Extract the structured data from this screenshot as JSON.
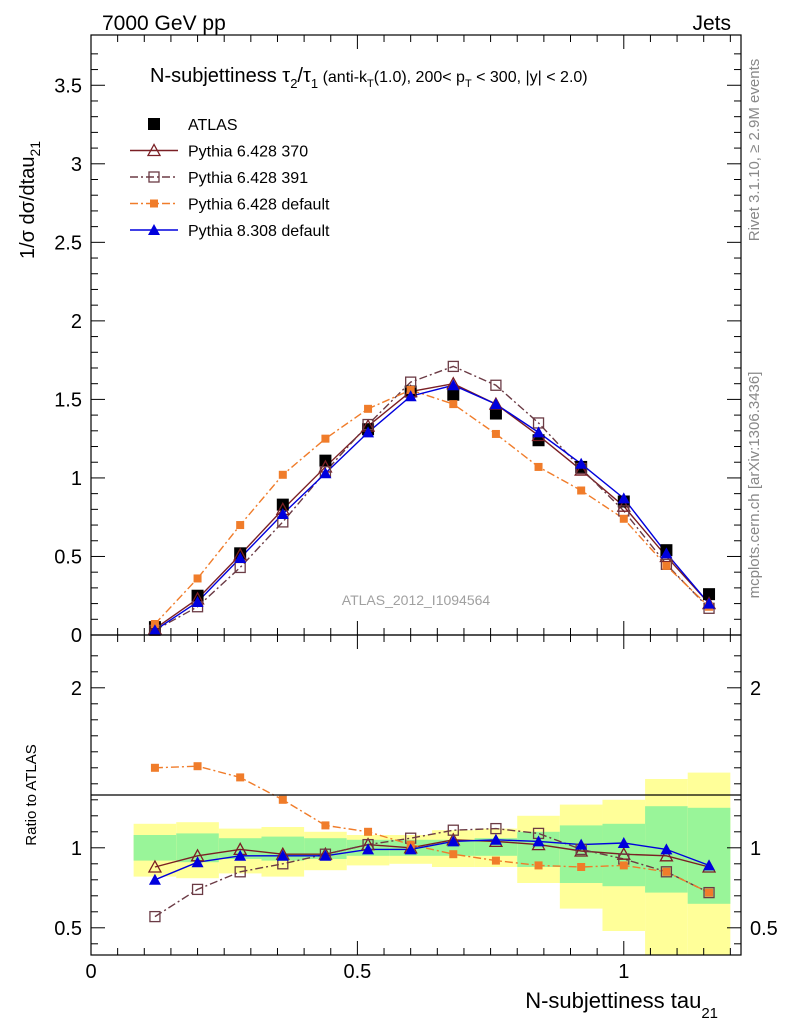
{
  "header": {
    "left": "7000 GeV pp",
    "right": "Jets"
  },
  "side_text": {
    "rivet": "Rivet 3.1.10, ≥ 2.9M events",
    "mcplots": "mcplots.cern.ch [arXiv:1306.3436]"
  },
  "watermark": "ATLAS_2012_I1094564",
  "colors": {
    "ATLAS": "#000000",
    "Pythia 6.428 370": "#7a1f24",
    "Pythia 6.428 391": "#6b3b45",
    "Pythia 6.428 default": "#f07c2a",
    "Pythia 8.308 default": "#0000dd",
    "band_inner": "#99f599",
    "band_outer": "#ffff99"
  },
  "chart_data": [
    {
      "type": "line",
      "title": "N-subjettiness τ₂/τ₁ (anti-kT(1.0), 200< pT < 300, |y| < 2.0)",
      "title_parts": {
        "main": "N-subjettiness ",
        "tau": "τ",
        "sub2": "2",
        "slash": "/",
        "sub1": "1",
        "cut_a": " (anti-k",
        "cut_T": "T",
        "cut_b": "(1.0), 200< p",
        "cut_T2": "T",
        "cut_c": " < 300, |y| < 2.0)"
      },
      "ylabel": "1/σ dσ/dtau",
      "ylabel_sub": "21",
      "xlim": [
        0,
        1.22
      ],
      "ylim": [
        0,
        3.82
      ],
      "yticks": [
        0,
        0.5,
        1,
        1.5,
        2,
        2.5,
        3,
        3.5
      ],
      "ytick_labels": [
        "0",
        "0.5",
        "1",
        "1.5",
        "2",
        "2.5",
        "3",
        "3.5"
      ],
      "legend_position": "top-left",
      "x": [
        0.12,
        0.2,
        0.28,
        0.36,
        0.44,
        0.52,
        0.6,
        0.68,
        0.76,
        0.84,
        0.92,
        1.0,
        1.08,
        1.16
      ],
      "series": [
        {
          "name": "ATLAS",
          "values": [
            0.05,
            0.25,
            0.52,
            0.83,
            1.11,
            1.31,
            1.55,
            1.53,
            1.41,
            1.24,
            1.07,
            0.85,
            0.54,
            0.26
          ]
        },
        {
          "name": "Pythia 6.428 370",
          "values": [
            0.04,
            0.23,
            0.51,
            0.8,
            1.07,
            1.33,
            1.55,
            1.6,
            1.47,
            1.27,
            1.05,
            0.82,
            0.5,
            0.2
          ]
        },
        {
          "name": "Pythia 6.428 391",
          "values": [
            0.03,
            0.18,
            0.43,
            0.72,
            1.04,
            1.34,
            1.61,
            1.71,
            1.59,
            1.35,
            1.06,
            0.79,
            0.45,
            0.17
          ]
        },
        {
          "name": "Pythia 6.428 default",
          "values": [
            0.07,
            0.36,
            0.7,
            1.02,
            1.25,
            1.44,
            1.56,
            1.47,
            1.28,
            1.07,
            0.92,
            0.74,
            0.44,
            0.18
          ]
        },
        {
          "name": "Pythia 8.308 default",
          "values": [
            0.03,
            0.21,
            0.49,
            0.77,
            1.03,
            1.29,
            1.52,
            1.59,
            1.47,
            1.29,
            1.09,
            0.87,
            0.52,
            0.2
          ]
        }
      ]
    },
    {
      "type": "line",
      "ylabel": "Ratio to ATLAS",
      "xlabel": "N-subjettiness tau",
      "xlabel_sub": "21",
      "xlim": [
        0,
        1.22
      ],
      "ylim": [
        0.33,
        2.33
      ],
      "xticks": [
        0,
        0.5,
        1
      ],
      "xtick_labels": [
        "0",
        "0.5",
        "1"
      ],
      "yticks": [
        0.5,
        1,
        2
      ],
      "ytick_labels": [
        "0.5",
        "1",
        "2"
      ],
      "reference_line": 1,
      "x": [
        0.12,
        0.2,
        0.28,
        0.36,
        0.44,
        0.52,
        0.6,
        0.68,
        0.76,
        0.84,
        0.92,
        1.0,
        1.08,
        1.16
      ],
      "bin_edges": [
        0.08,
        0.16,
        0.24,
        0.32,
        0.4,
        0.48,
        0.56,
        0.64,
        0.72,
        0.8,
        0.88,
        0.96,
        1.04,
        1.12,
        1.2
      ],
      "band_outer": {
        "low": [
          0.82,
          0.81,
          0.84,
          0.82,
          0.86,
          0.89,
          0.9,
          0.88,
          0.88,
          0.78,
          0.62,
          0.48,
          0.33,
          0.33
        ],
        "high": [
          1.15,
          1.16,
          1.12,
          1.13,
          1.1,
          1.08,
          1.08,
          1.11,
          1.12,
          1.2,
          1.27,
          1.3,
          1.43,
          1.47
        ]
      },
      "band_inner": {
        "low": [
          0.92,
          0.91,
          0.93,
          0.92,
          0.93,
          0.95,
          0.95,
          0.95,
          0.95,
          0.88,
          0.78,
          0.76,
          0.72,
          0.65
        ]
      },
      "band_inner_high": [
        1.08,
        1.09,
        1.06,
        1.07,
        1.06,
        1.05,
        1.05,
        1.05,
        1.06,
        1.1,
        1.14,
        1.15,
        1.26,
        1.25
      ],
      "series": [
        {
          "name": "Pythia 6.428 370",
          "values": [
            0.88,
            0.95,
            0.99,
            0.96,
            0.96,
            1.02,
            1.0,
            1.05,
            1.04,
            1.02,
            0.98,
            0.96,
            0.95,
            0.88
          ]
        },
        {
          "name": "Pythia 6.428 391",
          "values": [
            0.57,
            0.74,
            0.85,
            0.9,
            0.96,
            1.02,
            1.06,
            1.11,
            1.12,
            1.09,
            0.99,
            0.93,
            0.85,
            0.72
          ]
        },
        {
          "name": "Pythia 6.428 default",
          "values": [
            1.5,
            1.51,
            1.44,
            1.3,
            1.14,
            1.1,
            1.02,
            0.96,
            0.92,
            0.89,
            0.88,
            0.89,
            0.85,
            0.72
          ]
        },
        {
          "name": "Pythia 8.308 default",
          "values": [
            0.8,
            0.91,
            0.95,
            0.95,
            0.95,
            0.99,
            0.99,
            1.04,
            1.05,
            1.04,
            1.02,
            1.03,
            0.99,
            0.89
          ]
        }
      ]
    }
  ]
}
